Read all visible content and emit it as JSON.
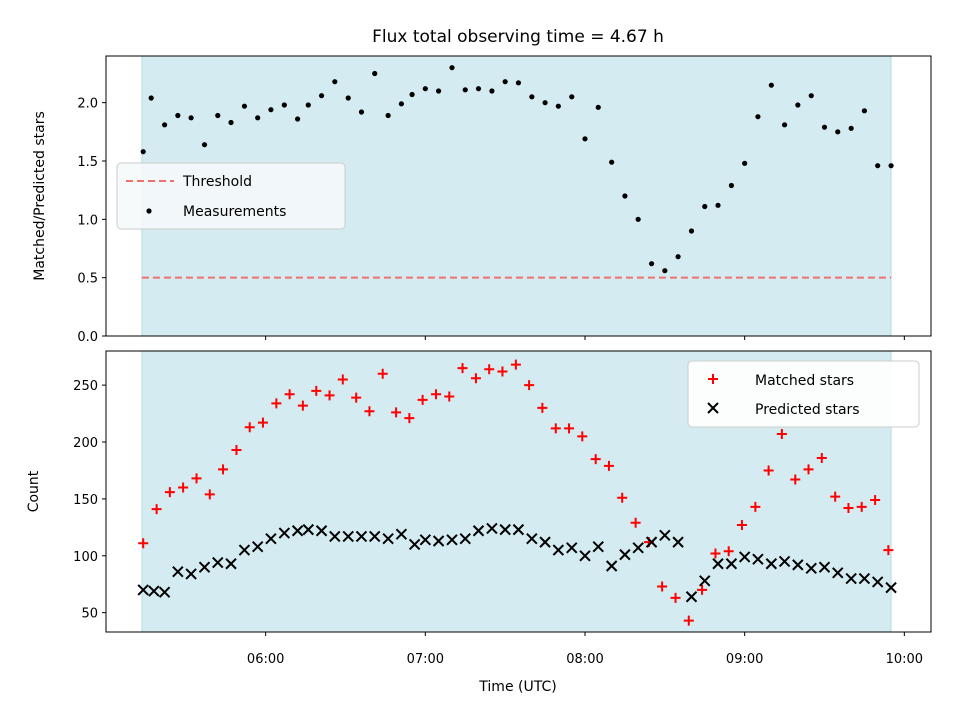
{
  "chart_data": {
    "title": "Flux total observing time = 4.67 h",
    "xlabel": "Time (UTC)",
    "x_unit": "hours UTC",
    "xlim": [
      5.0,
      10.167
    ],
    "x_ticks": [
      {
        "value": 6,
        "label": "06:00"
      },
      {
        "value": 7,
        "label": "07:00"
      },
      {
        "value": 8,
        "label": "08:00"
      },
      {
        "value": 9,
        "label": "09:00"
      },
      {
        "value": 10,
        "label": "10:00"
      }
    ],
    "observing_span": [
      5.225,
      9.917
    ],
    "shade_color": "#d4ebf1",
    "panels": [
      {
        "type": "scatter",
        "ylabel": "Matched/Predicted stars",
        "ylim": [
          0,
          2.4
        ],
        "y_ticks": [
          "0.0",
          "0.5",
          "1.0",
          "1.5",
          "2.0"
        ],
        "y_tick_values": [
          0,
          0.5,
          1.0,
          1.5,
          2.0
        ],
        "legend_placement": "center-left",
        "threshold": {
          "name": "Threshold",
          "value": 0.5,
          "color": "#f07070",
          "style": "dashed"
        },
        "series": [
          {
            "name": "Measurements",
            "color": "#000000",
            "marker": "dot",
            "x": [
              5.233,
              5.283,
              5.367,
              5.45,
              5.533,
              5.617,
              5.7,
              5.783,
              5.867,
              5.95,
              6.033,
              6.117,
              6.2,
              6.267,
              6.35,
              6.433,
              6.517,
              6.6,
              6.683,
              6.767,
              6.85,
              6.917,
              7.0,
              7.083,
              7.167,
              7.25,
              7.333,
              7.417,
              7.5,
              7.583,
              7.667,
              7.75,
              7.833,
              7.917,
              8.0,
              8.083,
              8.167,
              8.25,
              8.333,
              8.417,
              8.5,
              8.583,
              8.667,
              8.75,
              8.833,
              8.917,
              9.0,
              9.083,
              9.167,
              9.25,
              9.333,
              9.417,
              9.5,
              9.583,
              9.667,
              9.75,
              9.833,
              9.917
            ],
            "y": [
              1.58,
              2.04,
              1.81,
              1.89,
              1.87,
              1.64,
              1.89,
              1.83,
              1.97,
              1.87,
              1.94,
              1.98,
              1.86,
              1.98,
              2.06,
              2.18,
              2.04,
              1.92,
              2.25,
              1.89,
              1.99,
              2.07,
              2.12,
              2.1,
              2.3,
              2.11,
              2.12,
              2.1,
              2.18,
              2.17,
              2.05,
              2.0,
              1.97,
              2.05,
              1.69,
              1.96,
              1.49,
              1.2,
              1.0,
              0.62,
              0.56,
              0.68,
              0.9,
              1.11,
              1.12,
              1.29,
              1.48,
              1.88,
              2.15,
              1.81,
              1.98,
              2.06,
              1.79,
              1.75,
              1.78,
              1.93,
              1.46,
              1.46
            ]
          }
        ]
      },
      {
        "type": "scatter",
        "ylabel": "Count",
        "ylim": [
          33,
          280
        ],
        "y_ticks": [
          "50",
          "100",
          "150",
          "200",
          "250"
        ],
        "y_tick_values": [
          50,
          100,
          150,
          200,
          250
        ],
        "legend_placement": "top-right",
        "series": [
          {
            "name": "Matched stars",
            "color": "#ff0000",
            "marker": "plus",
            "x": [
              5.233,
              5.317,
              5.4,
              5.483,
              5.567,
              5.65,
              5.733,
              5.817,
              5.9,
              5.983,
              6.067,
              6.15,
              6.233,
              6.317,
              6.4,
              6.483,
              6.567,
              6.65,
              6.733,
              6.817,
              6.9,
              6.983,
              7.067,
              7.15,
              7.233,
              7.317,
              7.4,
              7.483,
              7.567,
              7.65,
              7.733,
              7.817,
              7.9,
              7.983,
              8.067,
              8.15,
              8.233,
              8.317,
              8.4,
              8.483,
              8.567,
              8.65,
              8.733,
              8.817,
              8.9,
              8.983,
              9.067,
              9.15,
              9.233,
              9.317,
              9.4,
              9.483,
              9.567,
              9.65,
              9.733,
              9.817,
              9.9
            ],
            "y": [
              111,
              141,
              156,
              160,
              168,
              154,
              176,
              193,
              213,
              217,
              234,
              242,
              232,
              245,
              241,
              255,
              239,
              227,
              260,
              226,
              221,
              237,
              242,
              240,
              265,
              256,
              264,
              262,
              268,
              250,
              230,
              212,
              212,
              205,
              185,
              179,
              151,
              129,
              112,
              73,
              63,
              43,
              70,
              102,
              104,
              127,
              143,
              175,
              207,
              167,
              176,
              186,
              152,
              142,
              143,
              149,
              105
            ]
          },
          {
            "name": "Predicted stars",
            "color": "#000000",
            "marker": "x",
            "x": [
              5.233,
              5.3,
              5.367,
              5.45,
              5.533,
              5.617,
              5.7,
              5.783,
              5.867,
              5.95,
              6.033,
              6.117,
              6.2,
              6.267,
              6.35,
              6.433,
              6.517,
              6.6,
              6.683,
              6.767,
              6.85,
              6.933,
              7.0,
              7.083,
              7.167,
              7.25,
              7.333,
              7.417,
              7.5,
              7.583,
              7.667,
              7.75,
              7.833,
              7.917,
              8.0,
              8.083,
              8.167,
              8.25,
              8.333,
              8.417,
              8.5,
              8.583,
              8.667,
              8.75,
              8.833,
              8.917,
              9.0,
              9.083,
              9.167,
              9.25,
              9.333,
              9.417,
              9.5,
              9.583,
              9.667,
              9.75,
              9.833,
              9.917
            ],
            "y": [
              70,
              69,
              68,
              86,
              84,
              90,
              94,
              93,
              105,
              108,
              115,
              120,
              122,
              123,
              122,
              117,
              117,
              117,
              117,
              115,
              119,
              110,
              114,
              113,
              114,
              115,
              122,
              124,
              123,
              123,
              115,
              112,
              105,
              107,
              100,
              108,
              91,
              101,
              107,
              112,
              118,
              112,
              64,
              78,
              93,
              93,
              99,
              97,
              93,
              95,
              92,
              89,
              90,
              85,
              80,
              80,
              77,
              72
            ]
          }
        ]
      }
    ]
  }
}
